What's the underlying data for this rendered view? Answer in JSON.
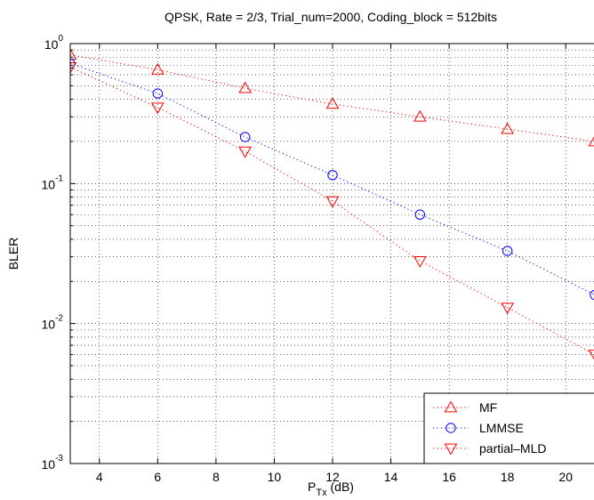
{
  "chart_data": {
    "type": "line",
    "title": "QPSK, Rate = 2/3, Trial_num=2000, Coding_block = 512bits",
    "xlabel": {
      "main": "P",
      "sub": "Tx",
      "unit": " (dB)"
    },
    "ylabel": "BLER",
    "x_scale": "linear",
    "y_scale": "log",
    "xlim": [
      3,
      21
    ],
    "ylim": [
      0.001,
      1
    ],
    "x_ticks": [
      4,
      6,
      8,
      10,
      12,
      14,
      16,
      18,
      20
    ],
    "x_tick_labels": [
      "4",
      "6",
      "8",
      "10",
      "12",
      "14",
      "16",
      "18",
      "20"
    ],
    "y_ticks": [
      {
        "base": "10",
        "exp": "0",
        "value": 1
      },
      {
        "base": "10",
        "exp": "-1",
        "value": 0.1
      },
      {
        "base": "10",
        "exp": "-2",
        "value": 0.01
      },
      {
        "base": "10",
        "exp": "-3",
        "value": 0.001
      }
    ],
    "grid": true,
    "legend_position": "bottom-right",
    "series": [
      {
        "name": "MF",
        "marker": "triangle-up",
        "color": "#ff0000",
        "x": [
          3,
          6,
          9,
          12,
          15,
          18,
          21
        ],
        "y": [
          0.83,
          0.65,
          0.48,
          0.37,
          0.3,
          0.245,
          0.2
        ]
      },
      {
        "name": "LMMSE",
        "marker": "circle",
        "color": "#0000ff",
        "x": [
          3,
          6,
          9,
          12,
          15,
          18,
          21
        ],
        "y": [
          0.72,
          0.44,
          0.215,
          0.115,
          0.06,
          0.033,
          0.016
        ]
      },
      {
        "name": "partial–MLD",
        "marker": "triangle-down",
        "color": "#ff0000",
        "x": [
          3,
          6,
          9,
          12,
          15,
          18,
          21
        ],
        "y": [
          0.68,
          0.35,
          0.17,
          0.075,
          0.028,
          0.013,
          0.006
        ]
      }
    ]
  }
}
